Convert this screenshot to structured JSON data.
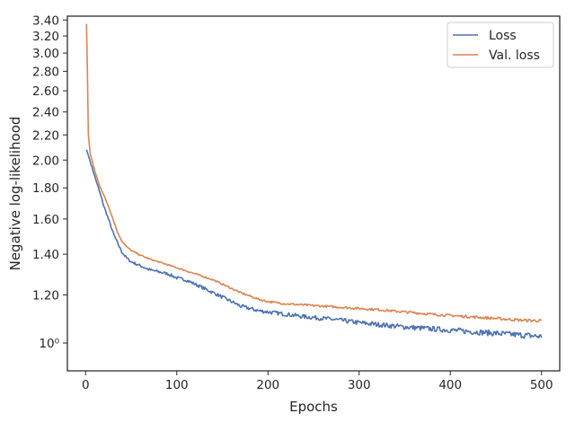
{
  "chart_data": {
    "type": "line",
    "title": "",
    "xlabel": "Epochs",
    "ylabel": "Negative log-likelihood",
    "y_scale": "log",
    "xlim": [
      -20,
      520
    ],
    "ylim": [
      0.9,
      3.45
    ],
    "grid": false,
    "legend_position": "top-right",
    "x_ticks": [
      0,
      100,
      200,
      300,
      400,
      500
    ],
    "x_tick_labels": [
      "0",
      "100",
      "200",
      "300",
      "400",
      "500"
    ],
    "y_ticks": [
      1.0,
      1.2,
      1.4,
      1.6,
      1.8,
      2.0,
      2.2,
      2.4,
      2.6,
      2.8,
      3.0,
      3.2,
      3.4
    ],
    "y_tick_labels": [
      "10⁰",
      "1.20",
      "1.40",
      "1.60",
      "1.80",
      "2.00",
      "2.20",
      "2.40",
      "2.60",
      "2.80",
      "3.00",
      "3.20",
      "3.40"
    ],
    "series": [
      {
        "name": "Loss",
        "color": "#4c72b0",
        "x": [
          1,
          5,
          10,
          15,
          20,
          25,
          30,
          35,
          40,
          45,
          50,
          60,
          70,
          80,
          90,
          100,
          110,
          120,
          130,
          140,
          150,
          160,
          170,
          180,
          190,
          200,
          220,
          240,
          260,
          280,
          300,
          320,
          340,
          360,
          380,
          400,
          420,
          440,
          460,
          480,
          500
        ],
        "y": [
          2.08,
          1.99,
          1.88,
          1.78,
          1.68,
          1.6,
          1.52,
          1.46,
          1.41,
          1.38,
          1.36,
          1.34,
          1.32,
          1.31,
          1.3,
          1.28,
          1.27,
          1.25,
          1.23,
          1.21,
          1.19,
          1.17,
          1.15,
          1.14,
          1.13,
          1.125,
          1.115,
          1.105,
          1.098,
          1.09,
          1.08,
          1.073,
          1.066,
          1.06,
          1.055,
          1.05,
          1.045,
          1.04,
          1.035,
          1.03,
          1.025
        ],
        "noise_amplitude": 0.006
      },
      {
        "name": "Val. loss",
        "color": "#dd8452",
        "x": [
          1,
          3,
          5,
          10,
          15,
          20,
          25,
          30,
          35,
          40,
          45,
          50,
          60,
          70,
          80,
          90,
          100,
          110,
          120,
          130,
          140,
          150,
          160,
          170,
          180,
          190,
          200,
          220,
          240,
          260,
          280,
          300,
          320,
          340,
          360,
          380,
          400,
          420,
          440,
          460,
          480,
          500
        ],
        "y": [
          3.35,
          2.2,
          2.05,
          1.92,
          1.82,
          1.75,
          1.68,
          1.6,
          1.52,
          1.47,
          1.44,
          1.42,
          1.395,
          1.375,
          1.36,
          1.345,
          1.33,
          1.315,
          1.3,
          1.285,
          1.27,
          1.25,
          1.23,
          1.21,
          1.195,
          1.18,
          1.17,
          1.16,
          1.155,
          1.15,
          1.145,
          1.14,
          1.135,
          1.128,
          1.122,
          1.115,
          1.11,
          1.105,
          1.1,
          1.095,
          1.09,
          1.088
        ],
        "noise_amplitude": 0.003
      }
    ]
  }
}
